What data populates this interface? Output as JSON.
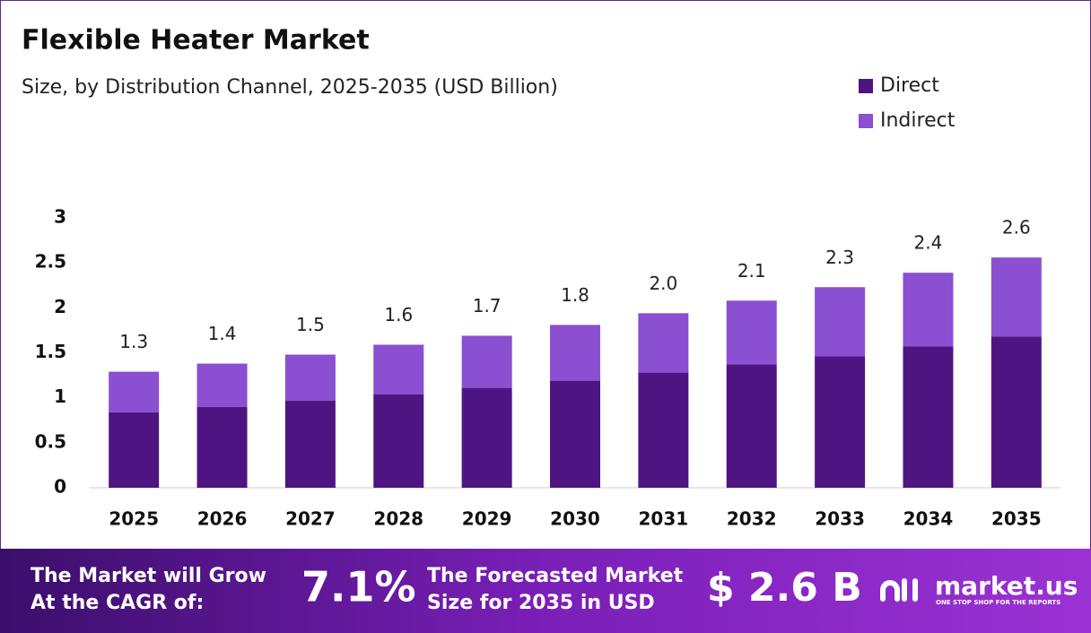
{
  "chart_data": {
    "type": "stacked_bar",
    "title": "Flexible Heater Market",
    "subtitle": "Size, by Distribution Channel, 2025-2035 (USD Billion)",
    "categories": [
      "2025",
      "2026",
      "2027",
      "2028",
      "2029",
      "2030",
      "2031",
      "2032",
      "2033",
      "2034",
      "2035"
    ],
    "series": [
      {
        "name": "Direct",
        "color": "#4e1582",
        "values": [
          0.84,
          0.9,
          0.97,
          1.04,
          1.11,
          1.19,
          1.28,
          1.37,
          1.46,
          1.57,
          1.68
        ]
      },
      {
        "name": "Indirect",
        "color": "#8b4fd1",
        "values": [
          0.45,
          0.48,
          0.51,
          0.55,
          0.58,
          0.62,
          0.66,
          0.71,
          0.77,
          0.82,
          0.88
        ]
      }
    ],
    "totals": {
      "values": [
        1.3,
        1.4,
        1.5,
        1.6,
        1.7,
        1.8,
        2.0,
        2.1,
        2.3,
        2.4,
        2.6
      ],
      "value_labels": [
        "1.3",
        "1.4",
        "1.5",
        "1.6",
        "1.7",
        "1.8",
        "2.0",
        "2.1",
        "2.3",
        "2.4",
        "2.6"
      ]
    },
    "ylim": [
      0,
      3
    ],
    "yticks": [
      0,
      0.5,
      1,
      1.5,
      2,
      2.5,
      3
    ],
    "grid": false,
    "legend": "top-right"
  },
  "footer": {
    "cagr_text": [
      "The Market will Grow",
      "At the CAGR of:"
    ],
    "cagr_value": "7.1%",
    "forecast_text": [
      "The Forecasted Market",
      "Size for 2035 in USD"
    ],
    "forecast_value": "$ 2.6 B",
    "brand": "market.us",
    "tagline": "ONE STOP SHOP FOR THE REPORTS"
  }
}
